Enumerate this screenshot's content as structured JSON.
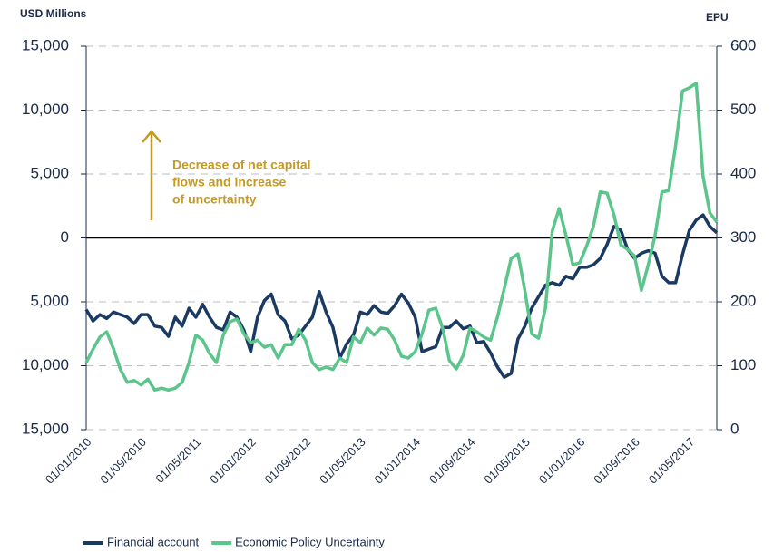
{
  "chart_data": {
    "type": "line",
    "y_axis_label": "USD Millions",
    "y2_axis_label": "EPU",
    "annotation": [
      "Decrease of net capital",
      "flows and increase",
      "of uncertainty"
    ],
    "categories": [
      "01/01/2010",
      null,
      null,
      null,
      null,
      null,
      null,
      null,
      "01/09/2010",
      null,
      null,
      null,
      null,
      null,
      null,
      null,
      "01/05/2011",
      null,
      null,
      null,
      null,
      null,
      null,
      null,
      "01/01/2012",
      null,
      null,
      null,
      null,
      null,
      null,
      null,
      "01/09/2012",
      null,
      null,
      null,
      null,
      null,
      null,
      null,
      "01/05/2013",
      null,
      null,
      null,
      null,
      null,
      null,
      null,
      "01/01/2014",
      null,
      null,
      null,
      null,
      null,
      null,
      null,
      "01/09/2014",
      null,
      null,
      null,
      null,
      null,
      null,
      null,
      "01/05/2015",
      null,
      null,
      null,
      null,
      null,
      null,
      null,
      "01/01/2016",
      null,
      null,
      null,
      null,
      null,
      null,
      null,
      "01/09/2016",
      null,
      null,
      null,
      null,
      null,
      null,
      null,
      "01/05/2017",
      null,
      null,
      null,
      null
    ],
    "series": [
      {
        "name": "Financial account",
        "color": "#1b3a63",
        "values": [
          -5600,
          -6500,
          -6000,
          -6300,
          -5800,
          -6000,
          -6200,
          -6700,
          -6000,
          -6000,
          -6900,
          -7000,
          -7700,
          -6200,
          -6900,
          -5500,
          -6200,
          -5200,
          -6200,
          -7000,
          -7200,
          -5800,
          -6200,
          -7200,
          -8900,
          -6200,
          -4900,
          -4400,
          -6000,
          -6500,
          -7900,
          -7600,
          -6900,
          -6200,
          -4200,
          -5800,
          -7000,
          -9400,
          -8300,
          -7600,
          -5800,
          -6000,
          -5300,
          -5800,
          -5900,
          -5300,
          -4400,
          -5100,
          -6200,
          -8900,
          -8700,
          -8500,
          -7000,
          -7000,
          -6500,
          -7100,
          -6900,
          -8200,
          -8100,
          -9000,
          -10100,
          -10900,
          -10600,
          -7900,
          -6900,
          -5500,
          -4600,
          -3700,
          -3500,
          -3700,
          -3000,
          -3200,
          -2300,
          -2300,
          -2100,
          -1600,
          -500,
          900,
          600,
          -900,
          -1600,
          -1200,
          -1000,
          -1200,
          -3000,
          -3500,
          -3500,
          -1300,
          600,
          1400,
          1800,
          900,
          400
        ]
      },
      {
        "name": "Economic Policy Uncertainty",
        "color": "#5cc58c",
        "axis": "y2",
        "values": [
          105,
          126,
          145,
          153,
          126,
          94,
          74,
          77,
          70,
          79,
          62,
          65,
          62,
          65,
          74,
          105,
          148,
          140,
          119,
          105,
          148,
          169,
          173,
          150,
          136,
          140,
          129,
          133,
          112,
          133,
          133,
          157,
          140,
          105,
          94,
          98,
          94,
          112,
          105,
          145,
          136,
          159,
          148,
          159,
          157,
          140,
          115,
          112,
          122,
          150,
          187,
          190,
          159,
          108,
          95,
          116,
          159,
          153,
          145,
          140,
          176,
          221,
          268,
          275,
          218,
          150,
          143,
          190,
          311,
          346,
          304,
          258,
          261,
          287,
          318,
          372,
          370,
          336,
          289,
          282,
          272,
          218,
          258,
          304,
          372,
          374,
          445,
          530,
          535,
          542,
          396,
          339,
          325
        ]
      }
    ],
    "ylim": [
      -15000,
      15000
    ],
    "yticks": [
      {
        "value": 15000,
        "label": "15,000"
      },
      {
        "value": 10000,
        "label": "10,000"
      },
      {
        "value": 5000,
        "label": "5,000"
      },
      0,
      {
        "value": -5000,
        "label": "5,000"
      },
      {
        "value": -10000,
        "label": "10,000"
      },
      {
        "value": -15000,
        "label": "15,000"
      }
    ],
    "y2lim": [
      0,
      600
    ],
    "y2ticks": [
      0,
      100,
      200,
      300,
      400,
      500,
      600
    ],
    "grid": true,
    "legend": "bottom left"
  }
}
